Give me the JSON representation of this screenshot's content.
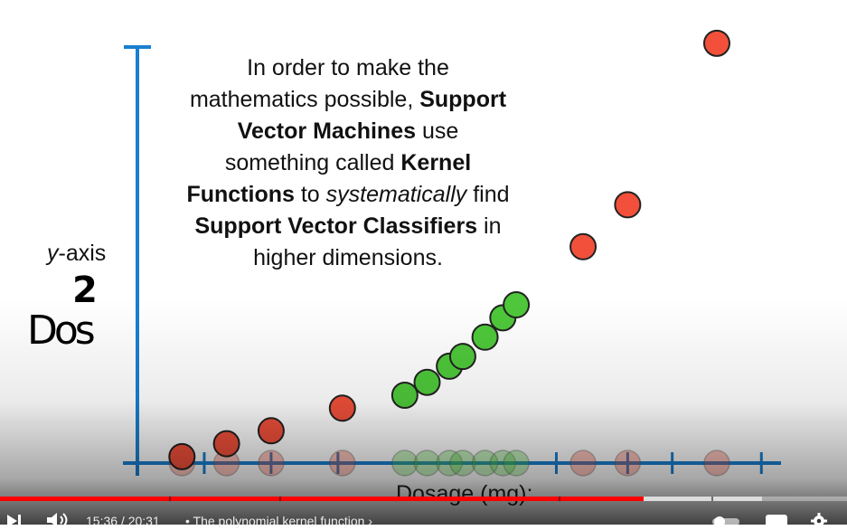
{
  "video": {
    "caption_lines": [
      [
        {
          "t": "In order to make the",
          "b": false,
          "i": false
        }
      ],
      [
        {
          "t": "mathematics possible, ",
          "b": false,
          "i": false
        },
        {
          "t": "Support",
          "b": true,
          "i": false
        }
      ],
      [
        {
          "t": "Vector Machines",
          "b": true,
          "i": false
        },
        {
          "t": " use",
          "b": false,
          "i": false
        }
      ],
      [
        {
          "t": "something called ",
          "b": false,
          "i": false
        },
        {
          "t": "Kernel",
          "b": true,
          "i": false
        }
      ],
      [
        {
          "t": "Functions",
          "b": true,
          "i": false
        },
        {
          "t": " to ",
          "b": false,
          "i": false
        },
        {
          "t": "systematically",
          "b": false,
          "i": true
        },
        {
          "t": " find",
          "b": false,
          "i": false
        }
      ],
      [
        {
          "t": "Support Vector Classifiers",
          "b": true,
          "i": false
        },
        {
          "t": " in",
          "b": false,
          "i": false
        }
      ],
      [
        {
          "t": "higher dimensions.",
          "b": false,
          "i": false
        }
      ]
    ],
    "y_label_italic": "y",
    "y_label_rest": "-axis",
    "x_label": "Dosage (mg):",
    "handwriting": {
      "superscript": "2",
      "word": "Dos"
    }
  },
  "chart_data": {
    "type": "scatter",
    "xlabel": "Dosage (mg):",
    "ylabel": "y-axis",
    "grid": false,
    "colors": {
      "red": "#f2503a",
      "green": "#4ec83a",
      "axis": "#1a7fd0"
    },
    "series": [
      {
        "category": "red",
        "points": [
          [
            0.5,
            0.2
          ],
          [
            1.0,
            0.6
          ],
          [
            1.5,
            1.0
          ],
          [
            2.3,
            1.7
          ],
          [
            5.0,
            6.7
          ],
          [
            5.5,
            8.0
          ],
          [
            6.5,
            13.0
          ]
        ]
      },
      {
        "category": "green",
        "points": [
          [
            3.0,
            2.1
          ],
          [
            3.25,
            2.5
          ],
          [
            3.5,
            3.0
          ],
          [
            3.65,
            3.3
          ],
          [
            3.9,
            3.9
          ],
          [
            4.1,
            4.5
          ],
          [
            4.25,
            4.9
          ]
        ]
      }
    ],
    "xlim": [
      0,
      7.2
    ],
    "ylim": [
      0,
      13.5
    ],
    "x_ticks": [
      0,
      0.75,
      1.5,
      2.25,
      4.7,
      5.5,
      6.0,
      7.0
    ]
  },
  "player": {
    "time": "15:36 / 20:31",
    "chapter": "• The polynomial kernel function",
    "chapter_arrow": "›",
    "progress_fraction": 0.76,
    "buffered_fraction": 0.9,
    "chapter_marks": [
      0.2,
      0.33,
      0.66,
      0.84
    ],
    "icons": [
      "next-icon",
      "volume-icon",
      "autoplay-toggle-icon",
      "captions-icon",
      "settings-icon"
    ]
  }
}
